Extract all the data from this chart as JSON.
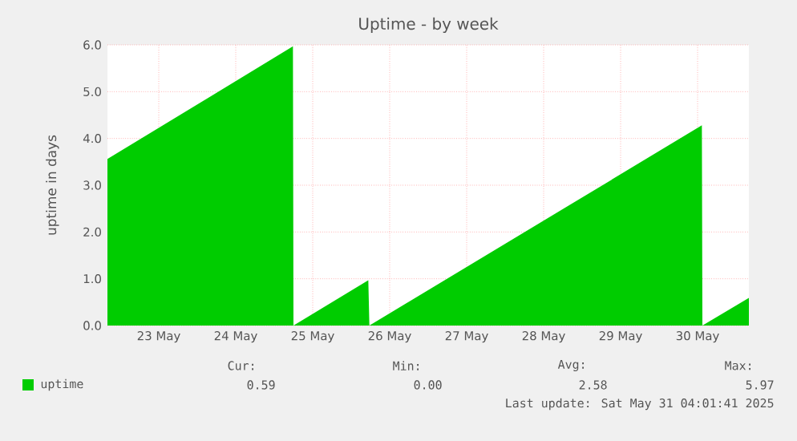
{
  "chart_data": {
    "type": "area",
    "title": "Uptime - by week",
    "ylabel": "uptime in days",
    "x": [
      "2025-05-22T20:00",
      "2025-05-25T05:50",
      "2025-05-25T06:00",
      "2025-05-26T05:20",
      "2025-05-26T05:40",
      "2025-05-30T13:20",
      "2025-05-30T13:30",
      "2025-05-31T04:00"
    ],
    "series": [
      {
        "name": "uptime",
        "color": "#00cc00",
        "values": [
          3.56,
          5.97,
          0,
          0.97,
          0,
          4.28,
          0,
          0.59
        ]
      }
    ],
    "xlim": [
      "2025-05-22T20:00",
      "2025-05-31T04:00"
    ],
    "xticks": [
      {
        "value": "2025-05-23T12:00",
        "label": "23 May"
      },
      {
        "value": "2025-05-24T12:00",
        "label": "24 May"
      },
      {
        "value": "2025-05-25T12:00",
        "label": "25 May"
      },
      {
        "value": "2025-05-26T12:00",
        "label": "26 May"
      },
      {
        "value": "2025-05-27T12:00",
        "label": "27 May"
      },
      {
        "value": "2025-05-28T12:00",
        "label": "28 May"
      },
      {
        "value": "2025-05-29T12:00",
        "label": "29 May"
      },
      {
        "value": "2025-05-30T12:00",
        "label": "30 May"
      }
    ],
    "ylim": [
      0,
      6
    ],
    "yticks": [
      {
        "value": 0,
        "label": "0.0"
      },
      {
        "value": 1,
        "label": "1.0"
      },
      {
        "value": 2,
        "label": "2.0"
      },
      {
        "value": 3,
        "label": "3.0"
      },
      {
        "value": 4,
        "label": "4.0"
      },
      {
        "value": 5,
        "label": "5.0"
      },
      {
        "value": 6,
        "label": "6.0"
      }
    ],
    "grid": true,
    "legend": "bottom",
    "annotations": [
      "Cur:",
      "Min:",
      "Avg:",
      "Max:",
      "0.59",
      "0.00",
      "2.58",
      "5.97",
      "Last update: Sat May 31 04:01:41 2025"
    ]
  }
}
